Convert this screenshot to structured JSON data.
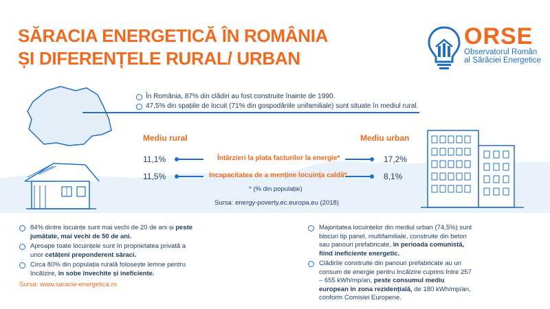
{
  "title": {
    "line1": "SĂRACIA ENERGETICĂ ÎN ROMÂNIA",
    "line2": "ȘI DIFERENȚELE RURAL/ URBAN"
  },
  "logo": {
    "name": "ORSE",
    "line1": "Observatorul Român",
    "line2": "al Sărăciei Energetice"
  },
  "top_bullets": [
    "În România, 87% din clădiri au fost construite înainte de 1990.",
    "47,5% din spațiile de locuit (71% din gospodăriile unifamiliale) sunt situate în mediul rural."
  ],
  "comparison": {
    "rural_label": "Mediu rural",
    "urban_label": "Mediu urban",
    "rows": [
      {
        "label": "Întârzieri la plata facturilor la energie*",
        "rural": "11,1%",
        "urban": "17,2%"
      },
      {
        "label": "Incapacitatea de a menține locuința caldă*",
        "rural": "11,5%",
        "urban": "8,1%"
      }
    ],
    "note": "* (% din populație)",
    "source": "Sursa: energy-poverty.ec.europa.eu (2018)"
  },
  "rural_bullets": {
    "b1": {
      "text": "84% dintre locuințe sunt mai vechi de 20 de ani și ",
      "bold": "peste jumătate, mai vechi de 50 de ani."
    },
    "b2": {
      "text": "Aproape toate locuințele sunt în proprietatea privată a unor ",
      "bold": "cetățeni preponderent săraci."
    },
    "b3": {
      "text": "Circa 80% din populația rurală folosește lemne pentru încălzire, ",
      "bold": "în sobe învechite și ineficiente."
    }
  },
  "urban_bullets": {
    "b1": {
      "text": "Majoritatea locuințelor din mediul urban (74,5%) sunt blocuri tip panel, multifamiliale, construite din beton sau panouri prefabricate, ",
      "bold": "în perioada comunistă, fiind ineficiente energetic."
    },
    "b2": {
      "text": "Clădirile construite din panouri prefabricate au un consum de energie pentru încălzire cuprins între 257 – 655 kWh/mp/an, ",
      "bold": "peste consumul mediu european în zona rezidențială,",
      "tail": " de 180 kWh/mp/an, conform Comisiei Europene."
    }
  },
  "source_bottom": "Sursa: www.saracie-energetica.ro",
  "colors": {
    "orange": "#f0691f",
    "blue": "#1f6fc2",
    "light_blue": "#e4eef8"
  }
}
